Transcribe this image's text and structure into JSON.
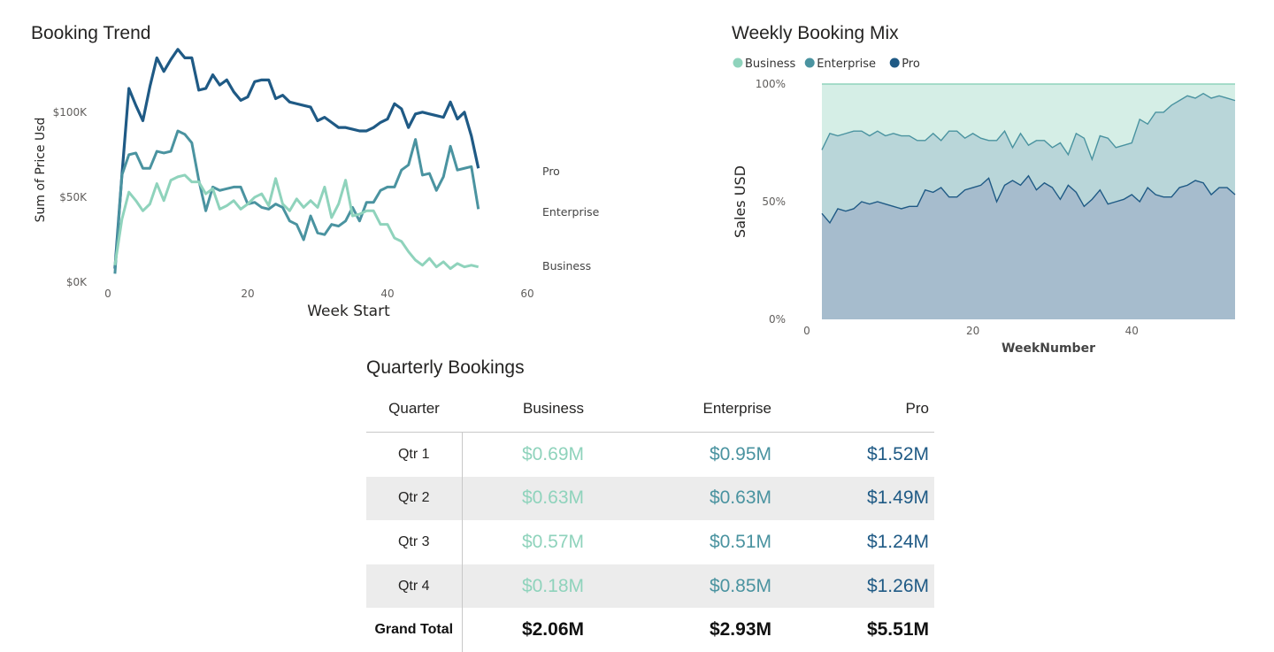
{
  "trend": {
    "title": "Booking Trend"
  },
  "mix": {
    "title": "Weekly Booking Mix"
  },
  "table": {
    "title": "Quarterly Bookings",
    "headers": [
      "Quarter",
      "Business",
      "Enterprise",
      "Pro"
    ],
    "rows": [
      {
        "quarter": "Qtr 1",
        "business": "$0.69M",
        "enterprise": "$0.95M",
        "pro": "$1.52M"
      },
      {
        "quarter": "Qtr 2",
        "business": "$0.63M",
        "enterprise": "$0.63M",
        "pro": "$1.49M"
      },
      {
        "quarter": "Qtr 3",
        "business": "$0.57M",
        "enterprise": "$0.51M",
        "pro": "$1.24M"
      },
      {
        "quarter": "Qtr 4",
        "business": "$0.18M",
        "enterprise": "$0.85M",
        "pro": "$1.26M"
      }
    ],
    "total": {
      "quarter": "Grand Total",
      "business": "$2.06M",
      "enterprise": "$2.93M",
      "pro": "$5.51M"
    }
  },
  "colors": {
    "business": "#8fd3bc",
    "enterprise": "#4a93a0",
    "pro": "#1f5a85"
  },
  "chart_data": [
    {
      "type": "line",
      "title": "Booking Trend",
      "xlabel": "Week Start",
      "ylabel": "Sum of Price Usd",
      "xlim": [
        0,
        60
      ],
      "ylim": [
        0,
        140000
      ],
      "x_ticks": [
        "0",
        "20",
        "40",
        "60"
      ],
      "y_ticks": [
        "$0K",
        "$50K",
        "$100K"
      ],
      "y_tick_values": [
        0,
        50000,
        100000
      ],
      "x": [
        1,
        2,
        3,
        4,
        5,
        6,
        7,
        8,
        9,
        10,
        11,
        12,
        13,
        14,
        15,
        16,
        17,
        18,
        19,
        20,
        21,
        22,
        23,
        24,
        25,
        26,
        27,
        28,
        29,
        30,
        31,
        32,
        33,
        34,
        35,
        36,
        37,
        38,
        39,
        40,
        41,
        42,
        43,
        44,
        45,
        46,
        47,
        48,
        49,
        50,
        51,
        52,
        53
      ],
      "series": [
        {
          "name": "Pro",
          "values": [
            8000,
            63000,
            114000,
            104000,
            95000,
            115000,
            132000,
            124000,
            131000,
            137000,
            132000,
            132000,
            113000,
            114000,
            122000,
            116000,
            119000,
            112000,
            107000,
            109000,
            118000,
            119000,
            119000,
            108000,
            110000,
            106000,
            105000,
            104000,
            103000,
            95000,
            97000,
            94000,
            91000,
            91000,
            90000,
            89000,
            89000,
            91000,
            94000,
            96000,
            105000,
            102000,
            91000,
            99000,
            100000,
            99000,
            98000,
            97000,
            106000,
            96000,
            100000,
            86000,
            67000
          ]
        },
        {
          "name": "Enterprise",
          "values": [
            5000,
            63000,
            75000,
            76000,
            67000,
            67000,
            77000,
            76000,
            77000,
            89000,
            87000,
            82000,
            60000,
            42000,
            56000,
            54000,
            55000,
            56000,
            56000,
            46000,
            47000,
            44000,
            43000,
            46000,
            44000,
            36000,
            34000,
            25000,
            39000,
            29000,
            28000,
            34000,
            33000,
            36000,
            44000,
            36000,
            47000,
            47000,
            54000,
            56000,
            56000,
            66000,
            69000,
            84000,
            63000,
            64000,
            54000,
            62000,
            80000,
            66000,
            67000,
            68000,
            43000
          ]
        },
        {
          "name": "Business",
          "values": [
            10000,
            37000,
            53000,
            48000,
            42000,
            46000,
            58000,
            48000,
            60000,
            62000,
            63000,
            59000,
            59000,
            52000,
            55000,
            43000,
            45000,
            48000,
            43000,
            46000,
            50000,
            52000,
            45000,
            61000,
            46000,
            42000,
            49000,
            44000,
            48000,
            44000,
            56000,
            38000,
            46000,
            60000,
            39000,
            40000,
            42000,
            42000,
            34000,
            34000,
            26000,
            24000,
            18000,
            13000,
            10000,
            14000,
            9000,
            12000,
            8000,
            11000,
            9000,
            10000,
            9000
          ]
        }
      ]
    },
    {
      "type": "area",
      "stacked": "percent",
      "title": "Weekly Booking Mix",
      "xlabel": "WeekNumber",
      "ylabel": "Sales USD",
      "xlim": [
        0,
        53
      ],
      "ylim": [
        0,
        100
      ],
      "x_ticks": [
        "0",
        "20",
        "40"
      ],
      "y_ticks": [
        "0%",
        "50%",
        "100%"
      ],
      "legend": "top-left",
      "x": [
        1,
        2,
        3,
        4,
        5,
        6,
        7,
        8,
        9,
        10,
        11,
        12,
        13,
        14,
        15,
        16,
        17,
        18,
        19,
        20,
        21,
        22,
        23,
        24,
        25,
        26,
        27,
        28,
        29,
        30,
        31,
        32,
        33,
        34,
        35,
        36,
        37,
        38,
        39,
        40,
        41,
        42,
        43,
        44,
        45,
        46,
        47,
        48,
        49,
        50,
        51,
        52,
        53
      ],
      "series": [
        {
          "name": "Pro",
          "cumulative_top_pct": [
            45,
            41,
            47,
            46,
            47,
            50,
            49,
            50,
            49,
            48,
            47,
            48,
            48,
            55,
            54,
            56,
            52,
            52,
            55,
            56,
            57,
            60,
            50,
            57,
            59,
            57,
            61,
            55,
            58,
            56,
            51,
            57,
            54,
            48,
            51,
            55,
            49,
            50,
            51,
            53,
            50,
            56,
            53,
            52,
            52,
            56,
            57,
            59,
            58,
            53,
            56,
            56,
            53
          ]
        },
        {
          "name": "Enterprise",
          "cumulative_top_pct": [
            72,
            79,
            78,
            79,
            80,
            80,
            78,
            80,
            78,
            79,
            78,
            78,
            76,
            76,
            79,
            76,
            80,
            80,
            77,
            79,
            77,
            76,
            76,
            80,
            73,
            79,
            74,
            76,
            76,
            73,
            75,
            70,
            79,
            77,
            68,
            78,
            77,
            73,
            74,
            75,
            85,
            83,
            88,
            88,
            91,
            93,
            95,
            94,
            96,
            94,
            95,
            94,
            93
          ]
        },
        {
          "name": "Business",
          "cumulative_top_pct": [
            100,
            100,
            100,
            100,
            100,
            100,
            100,
            100,
            100,
            100,
            100,
            100,
            100,
            100,
            100,
            100,
            100,
            100,
            100,
            100,
            100,
            100,
            100,
            100,
            100,
            100,
            100,
            100,
            100,
            100,
            100,
            100,
            100,
            100,
            100,
            100,
            100,
            100,
            100,
            100,
            100,
            100,
            100,
            100,
            100,
            100,
            100,
            100,
            100,
            100,
            100,
            100,
            100
          ]
        }
      ]
    },
    {
      "type": "table",
      "title": "Quarterly Bookings",
      "columns": [
        "Quarter",
        "Business",
        "Enterprise",
        "Pro"
      ],
      "rows": [
        [
          "Qtr 1",
          0.69,
          0.95,
          1.52
        ],
        [
          "Qtr 2",
          0.63,
          0.63,
          1.49
        ],
        [
          "Qtr 3",
          0.57,
          0.51,
          1.24
        ],
        [
          "Qtr 4",
          0.18,
          0.85,
          1.26
        ],
        [
          "Grand Total",
          2.06,
          2.93,
          5.51
        ]
      ],
      "unit": "$M"
    }
  ]
}
